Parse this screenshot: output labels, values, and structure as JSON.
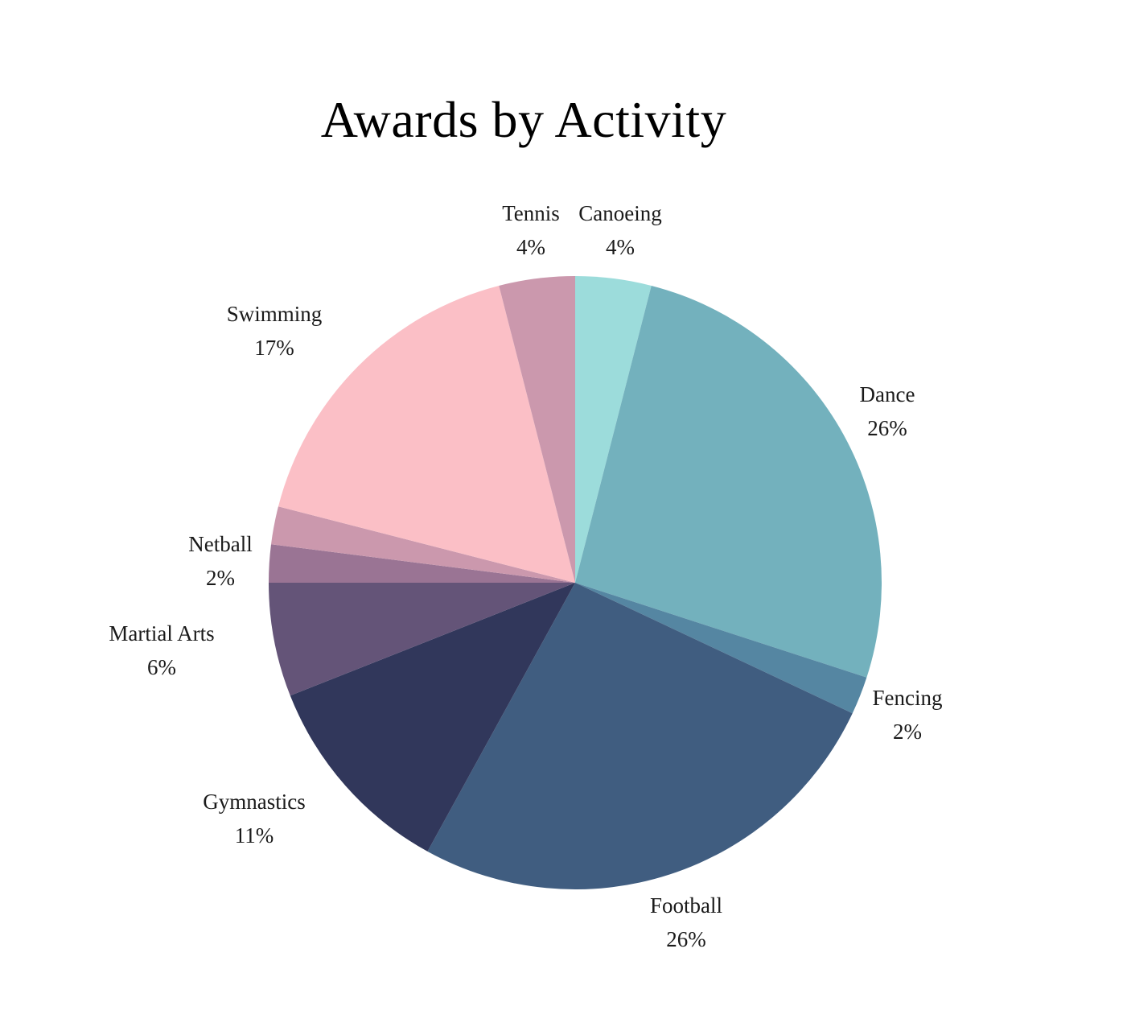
{
  "chart_data": {
    "type": "pie",
    "title": "Awards by Activity",
    "slices": [
      {
        "name": "Canoeing",
        "value": 4,
        "label": "4%",
        "color": "#9cdcdb"
      },
      {
        "name": "Dance",
        "value": 26,
        "label": "26%",
        "color": "#73b1bd"
      },
      {
        "name": "Fencing",
        "value": 2,
        "label": "2%",
        "color": "#5586a2"
      },
      {
        "name": "Football",
        "value": 26,
        "label": "26%",
        "color": "#405d80"
      },
      {
        "name": "Gymnastics",
        "value": 11,
        "label": "11%",
        "color": "#31375b"
      },
      {
        "name": "Martial Arts",
        "value": 6,
        "label": "6%",
        "color": "#645478"
      },
      {
        "name": "",
        "value": 2,
        "label": "",
        "color": "#9a7494"
      },
      {
        "name": "Netball",
        "value": 2,
        "label": "2%",
        "color": "#cb98ad"
      },
      {
        "name": "Swimming",
        "value": 17,
        "label": "17%",
        "color": "#fbbfc6"
      },
      {
        "name": "Tennis",
        "value": 4,
        "label": "4%",
        "color": "#cb98ad"
      }
    ]
  }
}
